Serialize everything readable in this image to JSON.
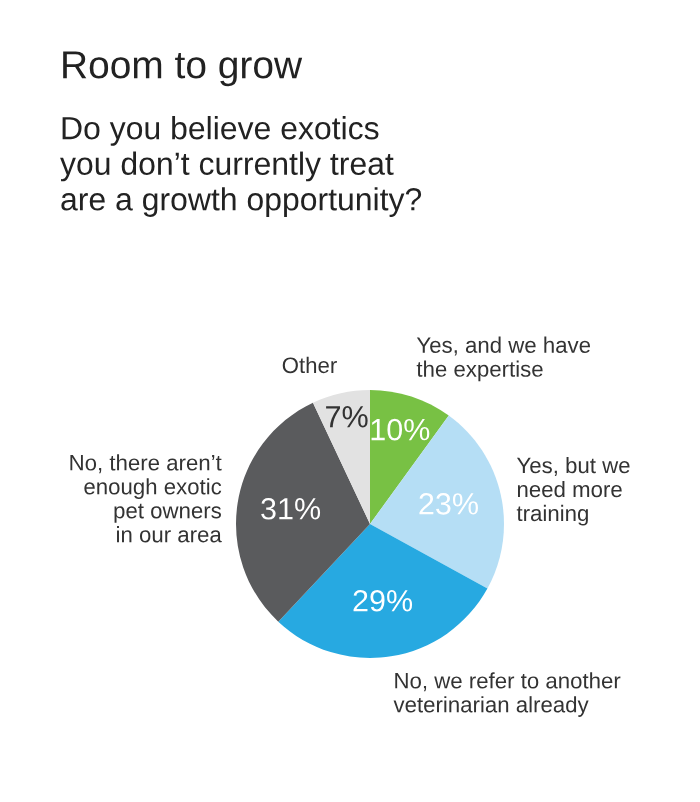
{
  "chart_data": {
    "type": "pie",
    "title": "Room to grow",
    "subtitle": "Do you believe exotics\nyou don’t currently treat\nare a growth opportunity?",
    "categories": [
      "Yes, and we have\nthe expertise",
      "Yes, but we\nneed more\ntraining",
      "No, we refer to another\nveterinarian already",
      "No, there aren’t\nenough exotic\npet owners\nin our area",
      "Other"
    ],
    "values": [
      10,
      23,
      29,
      31,
      7
    ],
    "value_labels": [
      "10%",
      "23%",
      "29%",
      "31%",
      "7%"
    ],
    "colors": [
      "#78c144",
      "#b5def5",
      "#27a9e1",
      "#5a5b5d",
      "#e2e2e2"
    ],
    "legend": false
  }
}
